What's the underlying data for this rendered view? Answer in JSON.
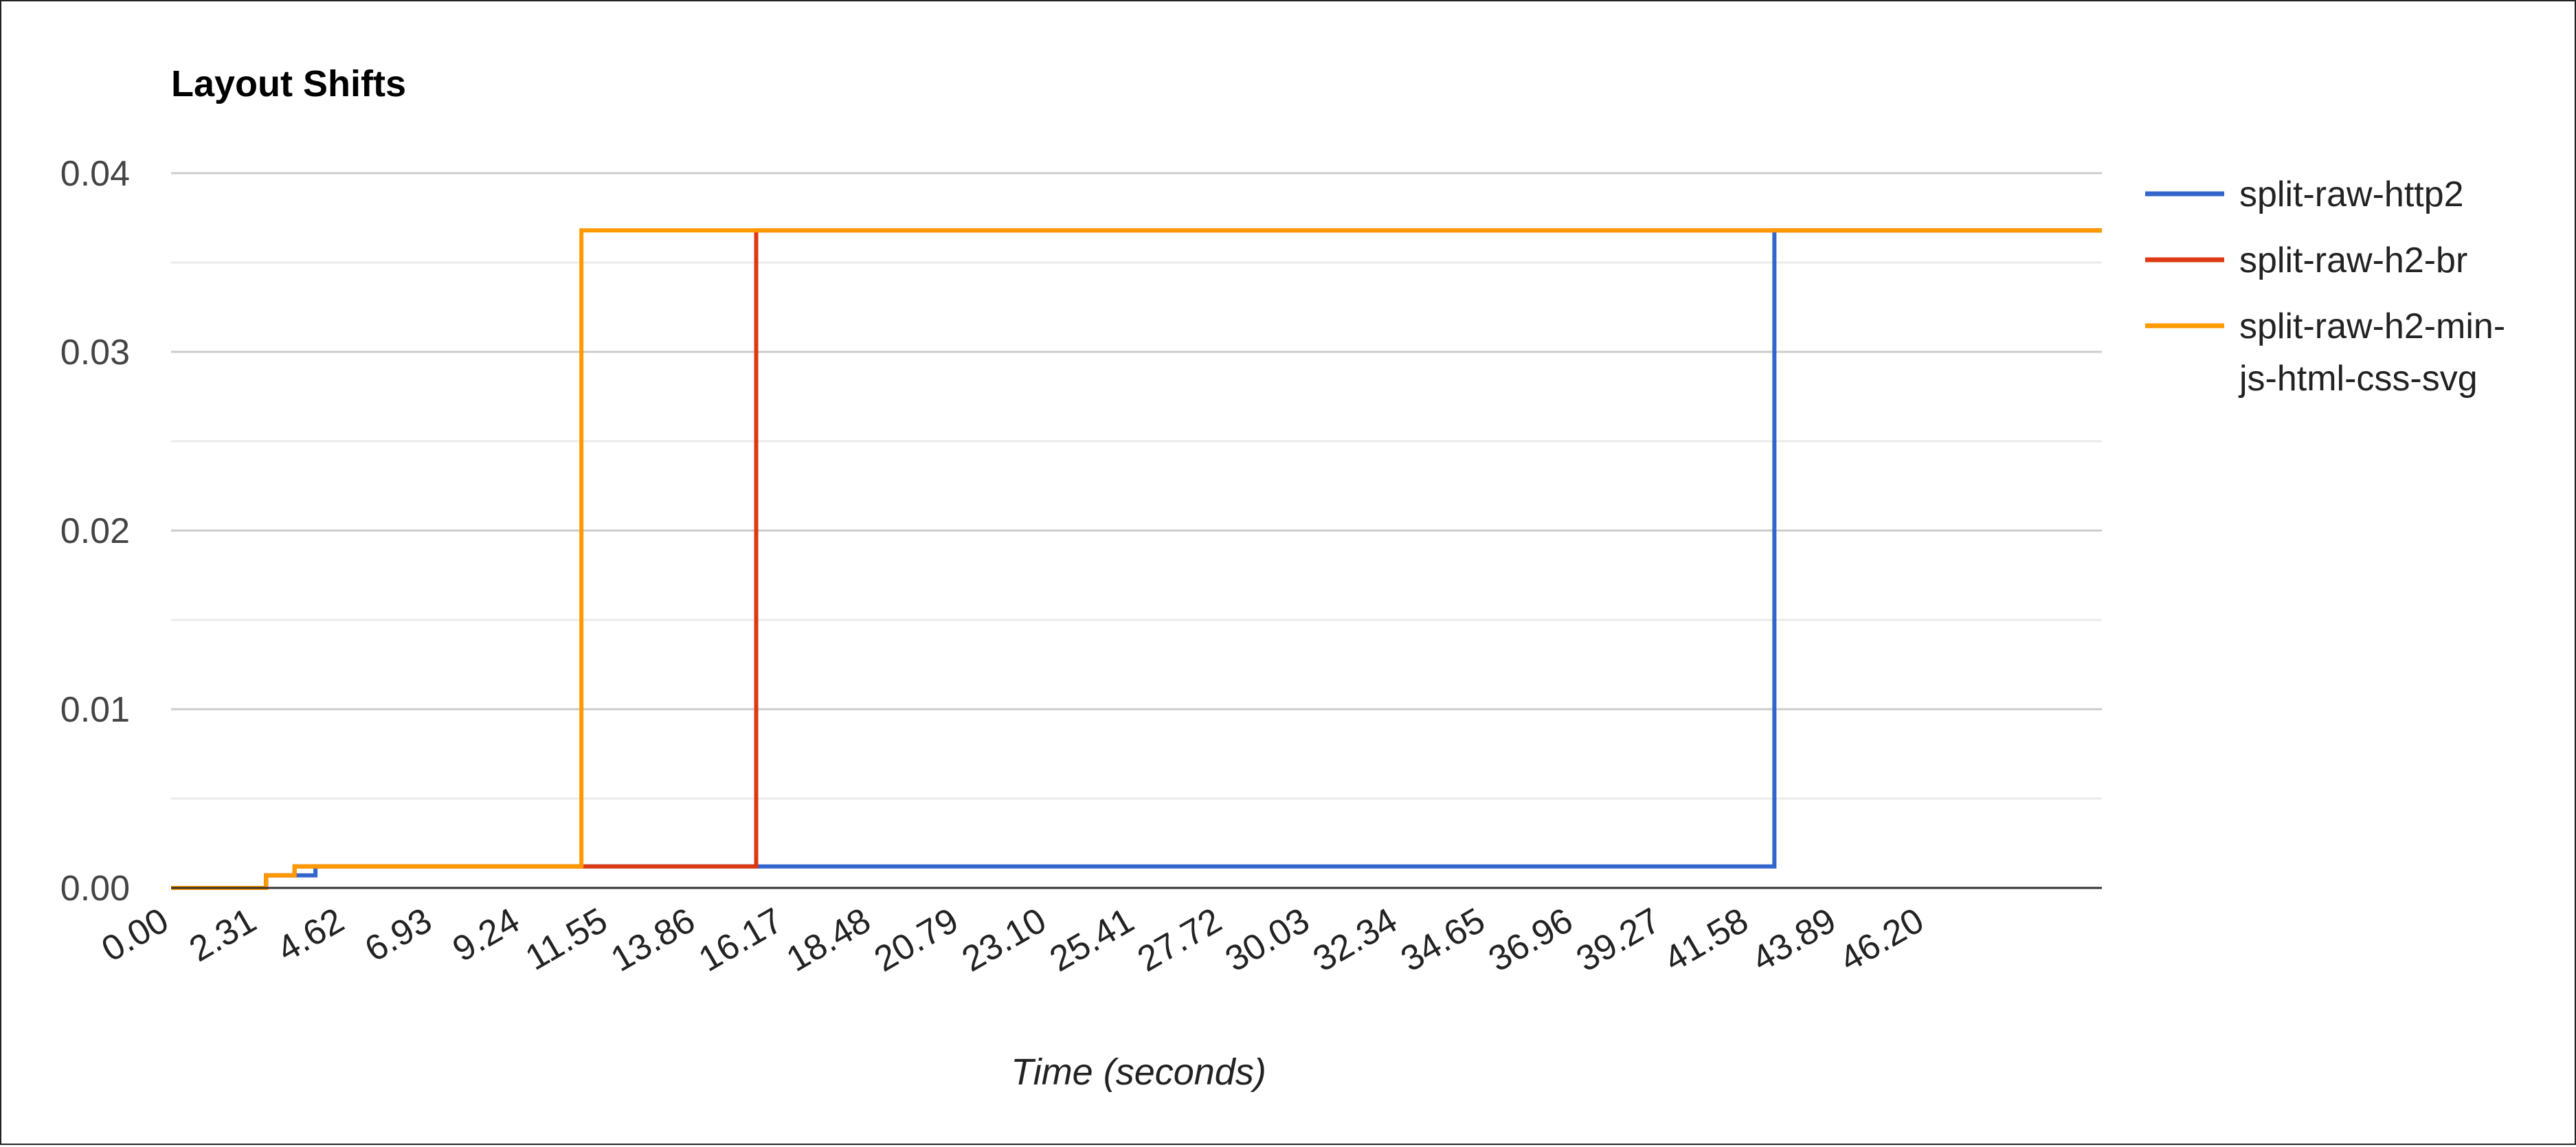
{
  "chart_data": {
    "type": "line",
    "step": true,
    "title": "Layout Shifts",
    "xlabel": "Time (seconds)",
    "ylabel": "",
    "xlim": [
      0,
      50.82
    ],
    "ylim": [
      0,
      0.04
    ],
    "x_ticks": [
      "0.00",
      "2.31",
      "4.62",
      "6.93",
      "9.24",
      "11.55",
      "13.86",
      "16.17",
      "18.48",
      "20.79",
      "23.10",
      "25.41",
      "27.72",
      "30.03",
      "32.34",
      "34.65",
      "36.96",
      "39.27",
      "41.58",
      "43.89",
      "46.20"
    ],
    "y_ticks": [
      "0.00",
      "0.01",
      "0.02",
      "0.03",
      "0.04"
    ],
    "grid": true,
    "legend": {
      "position": "right"
    },
    "series": [
      {
        "name": "split-raw-http2",
        "color": "#3366cc",
        "x": [
          0,
          2.5,
          3.8,
          42.2,
          50.82
        ],
        "y": [
          0,
          0.0007,
          0.0012,
          0.0368,
          0.0368
        ]
      },
      {
        "name": "split-raw-h2-br",
        "color": "#dc3912",
        "x": [
          0,
          2.5,
          3.25,
          15.4,
          50.82
        ],
        "y": [
          0,
          0.0007,
          0.0012,
          0.0368,
          0.0368
        ]
      },
      {
        "name": "split-raw-h2-min-js-html-css-svg",
        "color": "#ff9900",
        "x": [
          0,
          2.5,
          3.25,
          10.8,
          50.82
        ],
        "y": [
          0,
          0.0007,
          0.0012,
          0.0368,
          0.0368
        ]
      }
    ]
  }
}
